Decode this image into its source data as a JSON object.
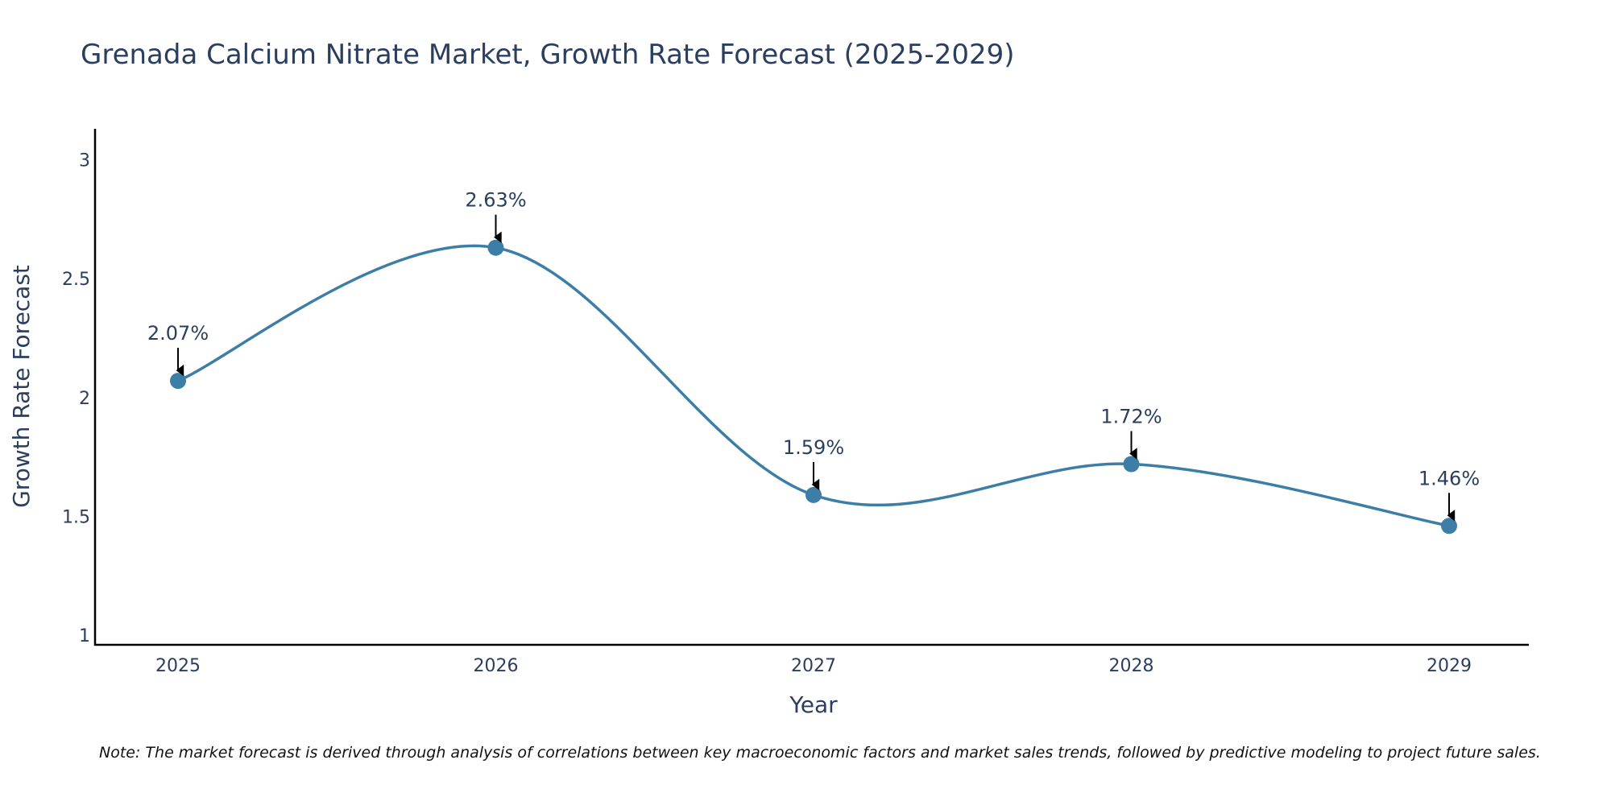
{
  "chart_data": {
    "type": "line",
    "title": "Grenada Calcium Nitrate Market, Growth Rate Forecast (2025-2029)",
    "xlabel": "Year",
    "ylabel": "Growth Rate Forecast",
    "categories": [
      "2025",
      "2026",
      "2027",
      "2028",
      "2029"
    ],
    "series": [
      {
        "name": "Growth Rate Forecast",
        "values": [
          2.07,
          2.63,
          1.59,
          1.72,
          1.46
        ]
      }
    ],
    "data_labels": [
      "2.07%",
      "2.63%",
      "1.59%",
      "1.72%",
      "1.46%"
    ],
    "y_ticks": [
      1,
      1.5,
      2,
      2.5,
      3
    ],
    "y_tick_labels": [
      "1",
      "1.5",
      "2",
      "2.5",
      "3"
    ],
    "ylim": [
      0.96,
      3.13
    ],
    "grid": false,
    "line_color": "#3d7ea6",
    "note": "Note: The market forecast is derived through analysis of correlations between key macroeconomic factors and market sales trends, followed by predictive modeling to project future sales."
  }
}
